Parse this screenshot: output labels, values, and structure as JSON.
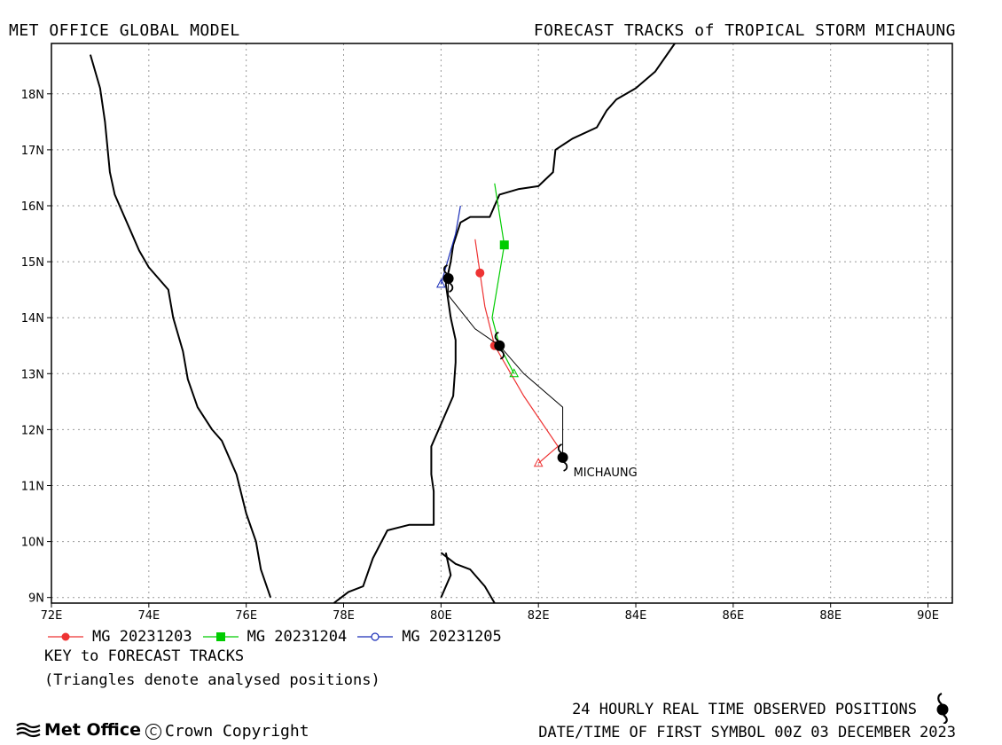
{
  "header": {
    "left": "MET OFFICE GLOBAL MODEL",
    "right": "FORECAST TRACKS of TROPICAL STORM MICHAUNG"
  },
  "map": {
    "lon_range": [
      72,
      90.5
    ],
    "lat_range": [
      8.9,
      18.9
    ],
    "lon_ticks": [
      "72E",
      "74E",
      "76E",
      "78E",
      "80E",
      "82E",
      "84E",
      "86E",
      "88E",
      "90E"
    ],
    "lat_ticks": [
      "9N",
      "10N",
      "11N",
      "12N",
      "13N",
      "14N",
      "15N",
      "16N",
      "17N",
      "18N"
    ],
    "grid": "dotted",
    "storm_label": "MICHAUNG",
    "colors": {
      "mg_20231203": "#ee3333",
      "mg_20231204": "#00cc00",
      "mg_20231205": "#1a2eb8",
      "observed": "#000000",
      "coast": "#000000"
    }
  },
  "chart_data": {
    "type": "map-tracks",
    "title": "FORECAST TRACKS of TROPICAL STORM MICHAUNG",
    "observed_track": {
      "symbols": [
        {
          "lon": 82.5,
          "lat": 11.5
        },
        {
          "lon": 81.2,
          "lat": 13.5
        },
        {
          "lon": 80.15,
          "lat": 14.7
        }
      ],
      "line": [
        [
          82.5,
          11.5
        ],
        [
          82.5,
          12.4
        ],
        [
          81.7,
          13.0
        ],
        [
          81.2,
          13.5
        ],
        [
          80.7,
          13.8
        ],
        [
          80.15,
          14.4
        ],
        [
          80.15,
          14.7
        ]
      ]
    },
    "forecast_tracks": [
      {
        "name": "MG 20231203",
        "start": [
          82.0,
          11.4
        ],
        "line": [
          [
            82.0,
            11.4
          ],
          [
            82.4,
            11.7
          ],
          [
            81.7,
            12.6
          ],
          [
            81.1,
            13.5
          ],
          [
            80.9,
            14.2
          ],
          [
            80.8,
            14.8
          ],
          [
            80.7,
            15.4
          ]
        ],
        "markers": [
          [
            81.1,
            13.5
          ],
          [
            80.8,
            14.8
          ]
        ]
      },
      {
        "name": "MG 20231204",
        "start": [
          81.5,
          13.0
        ],
        "line": [
          [
            81.5,
            13.0
          ],
          [
            81.2,
            13.5
          ],
          [
            81.05,
            14.0
          ],
          [
            81.3,
            15.3
          ],
          [
            81.1,
            16.4
          ]
        ],
        "markers": [
          [
            81.3,
            15.3
          ]
        ]
      },
      {
        "name": "MG 20231205",
        "start": [
          80.0,
          14.6
        ],
        "line": [
          [
            80.0,
            14.6
          ],
          [
            80.1,
            14.9
          ],
          [
            80.3,
            15.5
          ],
          [
            80.4,
            16.0
          ]
        ],
        "markers": []
      }
    ],
    "coastline": [
      [
        [
          72.8,
          18.7
        ],
        [
          73.0,
          18.1
        ],
        [
          73.1,
          17.5
        ],
        [
          73.2,
          16.6
        ],
        [
          73.3,
          16.2
        ],
        [
          73.6,
          15.6
        ],
        [
          73.8,
          15.2
        ],
        [
          74.0,
          14.9
        ],
        [
          74.4,
          14.5
        ],
        [
          74.5,
          14.0
        ],
        [
          74.7,
          13.4
        ],
        [
          74.8,
          12.9
        ],
        [
          75.0,
          12.4
        ],
        [
          75.3,
          12.0
        ],
        [
          75.5,
          11.8
        ],
        [
          75.8,
          11.2
        ],
        [
          76.0,
          10.5
        ],
        [
          76.2,
          10.0
        ],
        [
          76.3,
          9.5
        ],
        [
          76.5,
          9.0
        ]
      ],
      [
        [
          77.8,
          8.9
        ],
        [
          78.1,
          9.1
        ],
        [
          78.4,
          9.2
        ],
        [
          78.6,
          9.7
        ],
        [
          78.9,
          10.2
        ],
        [
          79.35,
          10.3
        ],
        [
          79.85,
          10.3
        ],
        [
          79.85,
          10.9
        ],
        [
          79.8,
          11.2
        ],
        [
          79.8,
          11.7
        ],
        [
          80.0,
          12.1
        ],
        [
          80.25,
          12.6
        ],
        [
          80.3,
          13.2
        ],
        [
          80.3,
          13.6
        ],
        [
          80.2,
          14.0
        ],
        [
          80.1,
          14.6
        ],
        [
          80.2,
          15.0
        ],
        [
          80.25,
          15.3
        ],
        [
          80.4,
          15.7
        ],
        [
          80.6,
          15.8
        ],
        [
          81.0,
          15.8
        ],
        [
          81.2,
          16.2
        ],
        [
          81.6,
          16.3
        ],
        [
          82.0,
          16.35
        ],
        [
          82.3,
          16.6
        ],
        [
          82.35,
          17.0
        ],
        [
          82.7,
          17.2
        ],
        [
          83.2,
          17.4
        ],
        [
          83.4,
          17.7
        ],
        [
          83.6,
          17.9
        ],
        [
          84.0,
          18.1
        ],
        [
          84.4,
          18.4
        ],
        [
          84.8,
          18.9
        ]
      ],
      [
        [
          80.0,
          9.8
        ],
        [
          80.3,
          9.6
        ],
        [
          80.6,
          9.5
        ],
        [
          80.9,
          9.2
        ],
        [
          81.1,
          8.9
        ]
      ],
      [
        [
          80.0,
          9.0
        ],
        [
          80.2,
          9.4
        ],
        [
          80.1,
          9.8
        ]
      ]
    ]
  },
  "legend": {
    "items": [
      {
        "label": "MG 20231203",
        "color": "#ee3333",
        "marker": "circle"
      },
      {
        "label": "MG 20231204",
        "color": "#00cc00",
        "marker": "square"
      },
      {
        "label": "MG 20231205",
        "color": "#1a2eb8",
        "marker": "open-circle"
      }
    ],
    "key_title": "KEY to FORECAST TRACKS",
    "key_note": "(Triangles denote analysed positions)"
  },
  "footer": {
    "observed_note": "24 HOURLY REAL TIME OBSERVED POSITIONS",
    "date_line": "DATE/TIME OF FIRST SYMBOL 00Z 03 DECEMBER 2023",
    "logo_text": "Met Office",
    "copyright": "Crown Copyright",
    "observed_icon": "tropical-storm-icon"
  }
}
